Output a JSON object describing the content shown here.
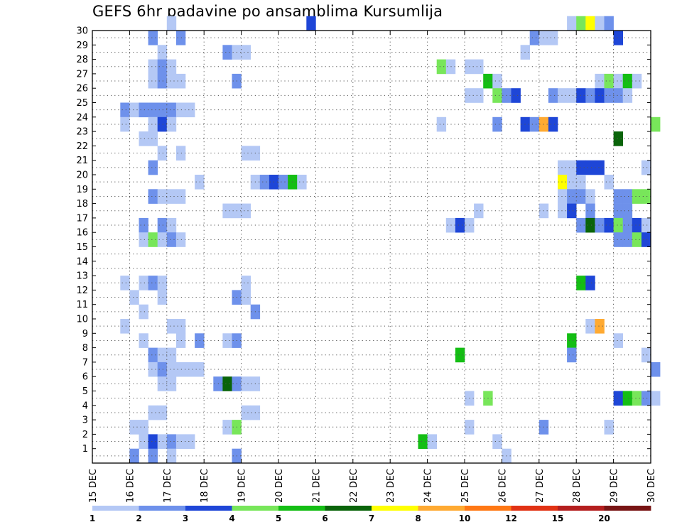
{
  "chart_data": {
    "type": "heatmap",
    "title": "GEFS 6hr padavine po ansamblima Kursumlija",
    "xlabel": "",
    "ylabel": "",
    "x_unit": "time (6-hourly steps)",
    "x_tick_labels": [
      "15 DEC",
      "16 DEC",
      "17 DEC",
      "18 DEC",
      "19 DEC",
      "20 DEC",
      "21 DEC",
      "22 DEC",
      "23 DEC",
      "24 DEC",
      "25 DEC",
      "26 DEC",
      "27 DEC",
      "28 DEC",
      "29 DEC",
      "30 DEC"
    ],
    "y_tick_labels": [
      "1",
      "2",
      "3",
      "4",
      "5",
      "6",
      "7",
      "8",
      "9",
      "10",
      "11",
      "12",
      "13",
      "14",
      "15",
      "16",
      "17",
      "18",
      "19",
      "20",
      "21",
      "22",
      "23",
      "24",
      "25",
      "26",
      "27",
      "28",
      "29",
      "30"
    ],
    "grid": true,
    "colorbar": {
      "labels": [
        "1",
        "2",
        "3",
        "4",
        "5",
        "6",
        "7",
        "8",
        "10",
        "12",
        "15",
        "20"
      ],
      "colors": [
        "#b4c8f5",
        "#6e91eb",
        "#1e46d7",
        "#78e65a",
        "#14be14",
        "#0a640a",
        "#ffff00",
        "#ffaa32",
        "#ff7814",
        "#e13214",
        "#b41e1e",
        "#781414"
      ]
    },
    "cells": [
      [
        8,
        30,
        1
      ],
      [
        23,
        30,
        3
      ],
      [
        51,
        30,
        1
      ],
      [
        52,
        30,
        4
      ],
      [
        53,
        30,
        7
      ],
      [
        54,
        30,
        1
      ],
      [
        55,
        30,
        2
      ],
      [
        6,
        29,
        2
      ],
      [
        9,
        29,
        2
      ],
      [
        47,
        29,
        2
      ],
      [
        48,
        29,
        1
      ],
      [
        49,
        29,
        1
      ],
      [
        56,
        29,
        3
      ],
      [
        7,
        28,
        1
      ],
      [
        14,
        28,
        2
      ],
      [
        15,
        28,
        1
      ],
      [
        16,
        28,
        1
      ],
      [
        46,
        28,
        1
      ],
      [
        6,
        27,
        1
      ],
      [
        7,
        27,
        2
      ],
      [
        8,
        27,
        1
      ],
      [
        37,
        27,
        4
      ],
      [
        38,
        27,
        1
      ],
      [
        40,
        27,
        1
      ],
      [
        41,
        27,
        1
      ],
      [
        6,
        26,
        1
      ],
      [
        7,
        26,
        2
      ],
      [
        8,
        26,
        1
      ],
      [
        9,
        26,
        1
      ],
      [
        15,
        26,
        2
      ],
      [
        42,
        26,
        5
      ],
      [
        43,
        26,
        1
      ],
      [
        54,
        26,
        1
      ],
      [
        55,
        26,
        4
      ],
      [
        56,
        26,
        1
      ],
      [
        57,
        26,
        5
      ],
      [
        58,
        26,
        1
      ],
      [
        40,
        25,
        1
      ],
      [
        41,
        25,
        1
      ],
      [
        43,
        25,
        4
      ],
      [
        44,
        25,
        2
      ],
      [
        45,
        25,
        3
      ],
      [
        49,
        25,
        2
      ],
      [
        50,
        25,
        1
      ],
      [
        51,
        25,
        1
      ],
      [
        52,
        25,
        3
      ],
      [
        53,
        25,
        2
      ],
      [
        54,
        25,
        3
      ],
      [
        55,
        25,
        2
      ],
      [
        56,
        25,
        2
      ],
      [
        57,
        25,
        1
      ],
      [
        3,
        24,
        2
      ],
      [
        4,
        24,
        1
      ],
      [
        5,
        24,
        2
      ],
      [
        6,
        24,
        2
      ],
      [
        7,
        24,
        2
      ],
      [
        8,
        24,
        2
      ],
      [
        9,
        24,
        1
      ],
      [
        10,
        24,
        1
      ],
      [
        3,
        23,
        1
      ],
      [
        6,
        23,
        1
      ],
      [
        7,
        23,
        3
      ],
      [
        8,
        23,
        1
      ],
      [
        37,
        23,
        1
      ],
      [
        43,
        23,
        2
      ],
      [
        46,
        23,
        3
      ],
      [
        47,
        23,
        2
      ],
      [
        48,
        23,
        8
      ],
      [
        49,
        23,
        3
      ],
      [
        60,
        23,
        4
      ],
      [
        5,
        22,
        1
      ],
      [
        6,
        22,
        1
      ],
      [
        56,
        22,
        6
      ],
      [
        16,
        21,
        1
      ],
      [
        17,
        21,
        1
      ],
      [
        7,
        21,
        1
      ],
      [
        9,
        21,
        1
      ],
      [
        6,
        20,
        2
      ],
      [
        50,
        20,
        1
      ],
      [
        51,
        20,
        1
      ],
      [
        52,
        20,
        3
      ],
      [
        53,
        20,
        3
      ],
      [
        54,
        20,
        3
      ],
      [
        59,
        20,
        1
      ],
      [
        11,
        19,
        1
      ],
      [
        17,
        19,
        1
      ],
      [
        18,
        19,
        2
      ],
      [
        19,
        19,
        3
      ],
      [
        20,
        19,
        2
      ],
      [
        21,
        19,
        5
      ],
      [
        22,
        19,
        1
      ],
      [
        50,
        19,
        7
      ],
      [
        51,
        19,
        1
      ],
      [
        52,
        19,
        1
      ],
      [
        55,
        19,
        1
      ],
      [
        6,
        18,
        2
      ],
      [
        7,
        18,
        1
      ],
      [
        8,
        18,
        1
      ],
      [
        9,
        18,
        1
      ],
      [
        50,
        18,
        1
      ],
      [
        51,
        18,
        2
      ],
      [
        52,
        18,
        2
      ],
      [
        53,
        18,
        1
      ],
      [
        56,
        18,
        2
      ],
      [
        57,
        18,
        2
      ],
      [
        58,
        18,
        4
      ],
      [
        59,
        18,
        4
      ],
      [
        14,
        17,
        1
      ],
      [
        15,
        17,
        1
      ],
      [
        16,
        17,
        1
      ],
      [
        41,
        17,
        1
      ],
      [
        48,
        17,
        1
      ],
      [
        50,
        17,
        1
      ],
      [
        51,
        17,
        3
      ],
      [
        53,
        17,
        2
      ],
      [
        56,
        17,
        2
      ],
      [
        57,
        17,
        2
      ],
      [
        5,
        16,
        2
      ],
      [
        7,
        16,
        2
      ],
      [
        8,
        16,
        1
      ],
      [
        38,
        16,
        1
      ],
      [
        39,
        16,
        3
      ],
      [
        40,
        16,
        1
      ],
      [
        52,
        16,
        2
      ],
      [
        53,
        16,
        6
      ],
      [
        54,
        16,
        2
      ],
      [
        55,
        16,
        3
      ],
      [
        56,
        16,
        4
      ],
      [
        57,
        16,
        2
      ],
      [
        58,
        16,
        3
      ],
      [
        59,
        16,
        1
      ],
      [
        5,
        15,
        1
      ],
      [
        6,
        15,
        4
      ],
      [
        7,
        15,
        1
      ],
      [
        8,
        15,
        2
      ],
      [
        9,
        15,
        1
      ],
      [
        56,
        15,
        2
      ],
      [
        57,
        15,
        2
      ],
      [
        58,
        15,
        4
      ],
      [
        59,
        15,
        3
      ],
      [
        3,
        12,
        1
      ],
      [
        5,
        12,
        1
      ],
      [
        6,
        12,
        2
      ],
      [
        7,
        12,
        1
      ],
      [
        16,
        12,
        1
      ],
      [
        52,
        12,
        5
      ],
      [
        53,
        12,
        3
      ],
      [
        4,
        11,
        1
      ],
      [
        7,
        11,
        1
      ],
      [
        15,
        11,
        2
      ],
      [
        16,
        11,
        1
      ],
      [
        5,
        10,
        1
      ],
      [
        17,
        10,
        2
      ],
      [
        3,
        9,
        1
      ],
      [
        8,
        9,
        1
      ],
      [
        9,
        9,
        1
      ],
      [
        53,
        9,
        1
      ],
      [
        54,
        9,
        8
      ],
      [
        5,
        8,
        1
      ],
      [
        9,
        8,
        1
      ],
      [
        11,
        8,
        2
      ],
      [
        14,
        8,
        1
      ],
      [
        15,
        8,
        2
      ],
      [
        51,
        8,
        5
      ],
      [
        56,
        8,
        1
      ],
      [
        6,
        7,
        2
      ],
      [
        7,
        7,
        1
      ],
      [
        8,
        7,
        1
      ],
      [
        39,
        7,
        5
      ],
      [
        51,
        7,
        2
      ],
      [
        59,
        7,
        1
      ],
      [
        6,
        6,
        1
      ],
      [
        7,
        6,
        2
      ],
      [
        8,
        6,
        1
      ],
      [
        9,
        6,
        1
      ],
      [
        10,
        6,
        1
      ],
      [
        11,
        6,
        1
      ],
      [
        60,
        6,
        2
      ],
      [
        7,
        5,
        1
      ],
      [
        8,
        5,
        1
      ],
      [
        13,
        5,
        2
      ],
      [
        14,
        5,
        6
      ],
      [
        15,
        5,
        2
      ],
      [
        16,
        5,
        1
      ],
      [
        17,
        5,
        1
      ],
      [
        40,
        4,
        1
      ],
      [
        42,
        4,
        4
      ],
      [
        56,
        4,
        3
      ],
      [
        57,
        4,
        5
      ],
      [
        58,
        4,
        4
      ],
      [
        59,
        4,
        2
      ],
      [
        60,
        4,
        1
      ],
      [
        6,
        3,
        1
      ],
      [
        7,
        3,
        1
      ],
      [
        16,
        3,
        1
      ],
      [
        17,
        3,
        1
      ],
      [
        4,
        2,
        1
      ],
      [
        5,
        2,
        1
      ],
      [
        14,
        2,
        1
      ],
      [
        15,
        2,
        4
      ],
      [
        40,
        2,
        1
      ],
      [
        48,
        2,
        2
      ],
      [
        55,
        2,
        1
      ],
      [
        5,
        1,
        1
      ],
      [
        6,
        1,
        3
      ],
      [
        7,
        1,
        1
      ],
      [
        8,
        1,
        2
      ],
      [
        9,
        1,
        1
      ],
      [
        10,
        1,
        1
      ],
      [
        35,
        1,
        5
      ],
      [
        36,
        1,
        1
      ],
      [
        43,
        1,
        1
      ],
      [
        4,
        0,
        2
      ],
      [
        6,
        0,
        2
      ],
      [
        8,
        0,
        1
      ],
      [
        15,
        0,
        2
      ],
      [
        44,
        0,
        1
      ]
    ]
  }
}
